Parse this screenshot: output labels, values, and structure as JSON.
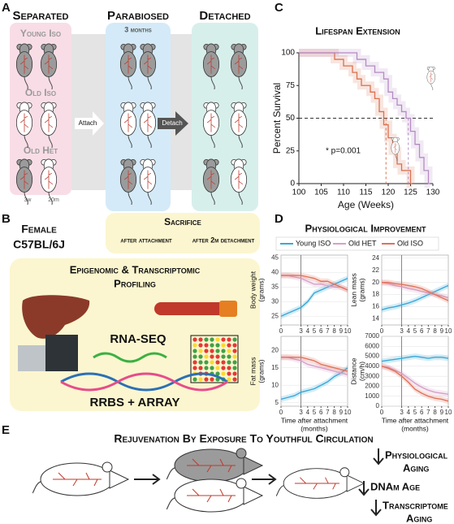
{
  "panel_letters": [
    "A",
    "B",
    "C",
    "D",
    "E"
  ],
  "panel_a": {
    "columns": [
      "Separated",
      "Parabiosed",
      "Detached"
    ],
    "duration": "3 months",
    "rows": [
      "Young Iso",
      "Old Iso",
      "Old Het"
    ],
    "arrows": [
      "Attach",
      "Detach"
    ],
    "ages": [
      "3w",
      "20m"
    ]
  },
  "panel_b": {
    "strain": [
      "Female",
      "C57BL/6J"
    ],
    "sacrifice": {
      "title": "Sacrifice",
      "times": [
        "after attachment",
        "after 2m detachment"
      ]
    },
    "profiling": {
      "title": [
        "Epigenomic & Transcriptomic",
        "Profiling"
      ],
      "methods": [
        "RNA-SEQ",
        "RRBS + ARRAY"
      ]
    }
  },
  "panel_d": {
    "title": "Physiological Improvement"
  },
  "panel_e": {
    "title": "Rejuvenation By Exposure To Youthful Circulation",
    "outcomes": [
      "Physiological",
      "Aging",
      "DNAm Age",
      "Transcriptome",
      "Aging"
    ]
  },
  "chart_data": [
    {
      "type": "step",
      "title": "Lifespan Extension",
      "x_label": "Age (Weeks)",
      "y_label": "Percent Survival",
      "xlim": [
        100,
        130
      ],
      "ylim": [
        0,
        100
      ],
      "xticks": [
        100,
        105,
        110,
        115,
        120,
        125,
        130
      ],
      "yticks": [
        0,
        25,
        50,
        75,
        100
      ],
      "hline": 50,
      "medians": [
        119.5,
        124.5
      ],
      "annotation": "* p=0.001",
      "series": [
        {
          "name": "Old ISO",
          "color": "#d9704f",
          "x": [
            100,
            108,
            110,
            112,
            113,
            114,
            116,
            117,
            118,
            119,
            120,
            121,
            122,
            123,
            125
          ],
          "values": [
            100,
            95,
            90,
            85,
            80,
            75,
            70,
            65,
            55,
            45,
            35,
            25,
            15,
            10,
            0
          ]
        },
        {
          "name": "Old HET",
          "color": "#b48ac2",
          "x": [
            100,
            112,
            113,
            115,
            117,
            119,
            120,
            121,
            122,
            123,
            124,
            125,
            126,
            127,
            128,
            129
          ],
          "values": [
            100,
            100,
            95,
            90,
            85,
            80,
            70,
            65,
            60,
            55,
            50,
            40,
            30,
            20,
            10,
            0
          ]
        }
      ]
    },
    {
      "type": "line",
      "y_label": [
        "Body weight",
        "(grams)"
      ],
      "xlim": [
        0,
        10
      ],
      "xticks": [
        0,
        3,
        4,
        5,
        6,
        7,
        8,
        9,
        10
      ],
      "ylim": [
        22,
        46
      ],
      "yticks": [
        25,
        30,
        35,
        40,
        45
      ],
      "vline": 3,
      "x": [
        0,
        1,
        2,
        3,
        4,
        5,
        6,
        7,
        8,
        9,
        10
      ],
      "series": [
        {
          "name": "Young ISO",
          "color": "#3aa8d8",
          "values": [
            25,
            26,
            27,
            28,
            30,
            33,
            34,
            35,
            36,
            37,
            38
          ]
        },
        {
          "name": "Old HET",
          "color": "#d7a0c8",
          "values": [
            39,
            39,
            38.5,
            38,
            37,
            36,
            36,
            35.5,
            35,
            35,
            34
          ]
        },
        {
          "name": "Old ISO",
          "color": "#e0735a",
          "values": [
            39,
            39,
            39,
            39,
            38.5,
            38,
            37,
            37,
            36,
            35,
            34
          ]
        }
      ]
    },
    {
      "type": "line",
      "y_label": [
        "Lean mass",
        "(grams)"
      ],
      "xlim": [
        0,
        10
      ],
      "xticks": [
        0,
        3,
        4,
        5,
        6,
        7,
        8,
        9,
        10
      ],
      "ylim": [
        13,
        24.5
      ],
      "yticks": [
        14,
        16,
        18,
        20,
        22,
        24
      ],
      "vline": 3,
      "x": [
        0,
        1,
        2,
        3,
        4,
        5,
        6,
        7,
        8,
        9,
        10
      ],
      "series": [
        {
          "name": "Young ISO",
          "color": "#3aa8d8",
          "values": [
            15.5,
            15.8,
            16,
            16.3,
            16.6,
            17,
            17.5,
            18,
            18.5,
            19,
            19.5
          ]
        },
        {
          "name": "Old HET",
          "color": "#d7a0c8",
          "values": [
            20,
            19.8,
            19.5,
            19.3,
            19,
            18.8,
            18.5,
            18.3,
            18,
            17.8,
            17.5
          ]
        },
        {
          "name": "Old ISO",
          "color": "#e0735a",
          "values": [
            20,
            20,
            19.8,
            19.7,
            19.5,
            19.3,
            19,
            18.5,
            18,
            17.5,
            17
          ]
        }
      ]
    },
    {
      "type": "line",
      "y_label": [
        "Fat mass",
        "(grams)"
      ],
      "x_label": [
        "Time after attachment",
        "(months)"
      ],
      "xlim": [
        0,
        10
      ],
      "xticks": [
        0,
        3,
        4,
        5,
        6,
        7,
        8,
        9,
        10
      ],
      "ylim": [
        4,
        24
      ],
      "yticks": [
        5,
        10,
        15,
        20
      ],
      "vline": 3,
      "x": [
        0,
        1,
        2,
        3,
        4,
        5,
        6,
        7,
        8,
        9,
        10
      ],
      "series": [
        {
          "name": "Young ISO",
          "color": "#3aa8d8",
          "values": [
            6,
            6.5,
            7,
            8,
            8.5,
            9,
            10,
            11,
            12.5,
            13.5,
            15
          ]
        },
        {
          "name": "Old HET",
          "color": "#d7a0c8",
          "values": [
            18,
            18,
            17.5,
            17,
            16,
            15.5,
            15,
            14.5,
            14,
            13.5,
            13
          ]
        },
        {
          "name": "Old ISO",
          "color": "#e0735a",
          "values": [
            18,
            18,
            18,
            18,
            17.5,
            17,
            16,
            15.5,
            15,
            14.5,
            14
          ]
        }
      ]
    },
    {
      "type": "line",
      "y_label": [
        "Distance",
        "(cm/h)"
      ],
      "x_label": [
        "Time after attachment",
        "(months)"
      ],
      "xlim": [
        0,
        10
      ],
      "xticks": [
        0,
        3,
        4,
        5,
        6,
        7,
        8,
        9,
        10
      ],
      "ylim": [
        0,
        7000
      ],
      "yticks": [
        0,
        1000,
        2000,
        3000,
        4000,
        5000,
        6000,
        7000
      ],
      "vline": 3,
      "x": [
        0,
        1,
        2,
        3,
        4,
        5,
        6,
        7,
        8,
        9,
        10
      ],
      "series": [
        {
          "name": "Young ISO",
          "color": "#3aa8d8",
          "values": [
            4500,
            4600,
            4700,
            4800,
            4900,
            5000,
            4900,
            4800,
            4900,
            4900,
            4800
          ]
        },
        {
          "name": "Old HET",
          "color": "#d7a0c8",
          "values": [
            4000,
            3900,
            3600,
            3300,
            2800,
            2300,
            1900,
            1600,
            1400,
            1300,
            1200
          ]
        },
        {
          "name": "Old ISO",
          "color": "#e0735a",
          "values": [
            4000,
            3800,
            3500,
            3000,
            2400,
            1700,
            1300,
            1000,
            800,
            700,
            500
          ]
        }
      ]
    }
  ]
}
